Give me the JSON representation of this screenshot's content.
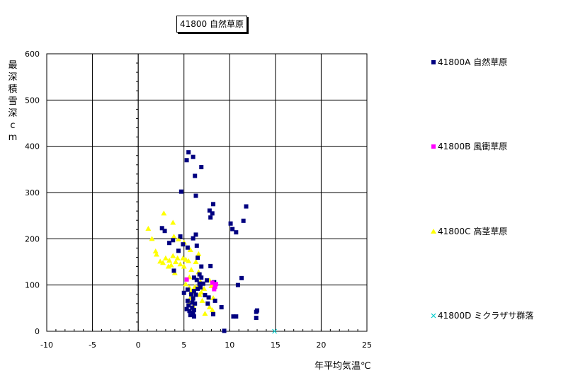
{
  "chart_data": {
    "type": "scatter",
    "title": "41800 自然草原",
    "xlabel": "年平均気温℃",
    "ylabel": "最深積雪深cm",
    "xlim": [
      -10,
      25
    ],
    "ylim": [
      0,
      600
    ],
    "x_ticks": [
      -10,
      -5,
      0,
      5,
      10,
      15,
      20,
      25
    ],
    "y_ticks": [
      0,
      100,
      200,
      300,
      400,
      500,
      600
    ],
    "grid": true,
    "legend_position": "right",
    "series": [
      {
        "name": "41800A 自然草原",
        "marker": "square",
        "color": "#000080",
        "points": [
          [
            5.5,
            387
          ],
          [
            6.0,
            377
          ],
          [
            5.3,
            370
          ],
          [
            6.9,
            355
          ],
          [
            6.2,
            336
          ],
          [
            4.7,
            302
          ],
          [
            6.3,
            293
          ],
          [
            8.2,
            275
          ],
          [
            11.8,
            270
          ],
          [
            7.8,
            261
          ],
          [
            8.1,
            255
          ],
          [
            7.9,
            246
          ],
          [
            11.5,
            239
          ],
          [
            10.1,
            233
          ],
          [
            10.3,
            221
          ],
          [
            2.6,
            223
          ],
          [
            2.9,
            217
          ],
          [
            10.7,
            214
          ],
          [
            6.3,
            209
          ],
          [
            6.0,
            201
          ],
          [
            4.6,
            205
          ],
          [
            3.8,
            197
          ],
          [
            3.4,
            191
          ],
          [
            6.4,
            185
          ],
          [
            4.9,
            188
          ],
          [
            5.4,
            181
          ],
          [
            4.4,
            174
          ],
          [
            6.5,
            159
          ],
          [
            6.9,
            140
          ],
          [
            7.9,
            141
          ],
          [
            3.9,
            131
          ],
          [
            6.7,
            123
          ],
          [
            6.1,
            116
          ],
          [
            6.9,
            116
          ],
          [
            6.4,
            111
          ],
          [
            7.5,
            110
          ],
          [
            11.3,
            115
          ],
          [
            6.7,
            103
          ],
          [
            7.1,
            103
          ],
          [
            8.3,
            106
          ],
          [
            10.9,
            100
          ],
          [
            5.0,
            83
          ],
          [
            5.4,
            90
          ],
          [
            6.1,
            87
          ],
          [
            6.5,
            92
          ],
          [
            6.8,
            95
          ],
          [
            5.8,
            80
          ],
          [
            6.3,
            79
          ],
          [
            7.3,
            78
          ],
          [
            7.7,
            73
          ],
          [
            6.0,
            71
          ],
          [
            5.4,
            66
          ],
          [
            5.9,
            62
          ],
          [
            6.2,
            60
          ],
          [
            7.6,
            60
          ],
          [
            8.4,
            66
          ],
          [
            5.5,
            56
          ],
          [
            5.9,
            51
          ],
          [
            6.1,
            46
          ],
          [
            5.3,
            48
          ],
          [
            9.1,
            52
          ],
          [
            5.6,
            44
          ],
          [
            6.0,
            40
          ],
          [
            8.2,
            37
          ],
          [
            5.7,
            35
          ],
          [
            6.1,
            32
          ],
          [
            10.4,
            32
          ],
          [
            10.7,
            32
          ],
          [
            12.9,
            42
          ],
          [
            13.0,
            45
          ],
          [
            12.9,
            29
          ],
          [
            9.4,
            1
          ]
        ]
      },
      {
        "name": "41800B 風衝草原",
        "marker": "square",
        "color": "#ff00ff",
        "points": [
          [
            5.3,
            112
          ],
          [
            8.1,
            105
          ],
          [
            8.5,
            102
          ],
          [
            8.4,
            96
          ],
          [
            8.3,
            91
          ]
        ]
      },
      {
        "name": "41800C 高茎草原",
        "marker": "triangle",
        "color": "#ffff00",
        "points": [
          [
            2.8,
            255
          ],
          [
            1.1,
            222
          ],
          [
            3.8,
            235
          ],
          [
            1.5,
            200
          ],
          [
            3.9,
            205
          ],
          [
            4.4,
            199
          ],
          [
            5.0,
            192
          ],
          [
            1.9,
            173
          ],
          [
            2.0,
            166
          ],
          [
            5.7,
            176
          ],
          [
            2.4,
            151
          ],
          [
            2.7,
            148
          ],
          [
            3.0,
            158
          ],
          [
            3.4,
            153
          ],
          [
            3.6,
            143
          ],
          [
            3.8,
            163
          ],
          [
            4.1,
            150
          ],
          [
            4.3,
            158
          ],
          [
            4.6,
            145
          ],
          [
            5.0,
            140
          ],
          [
            3.3,
            140
          ],
          [
            4.9,
            158
          ],
          [
            5.2,
            155
          ],
          [
            5.5,
            152
          ],
          [
            6.3,
            150
          ],
          [
            6.6,
            167
          ],
          [
            4.0,
            126
          ],
          [
            5.8,
            133
          ],
          [
            6.6,
            128
          ],
          [
            5.6,
            117
          ],
          [
            6.8,
            107
          ],
          [
            5.2,
            102
          ],
          [
            5.6,
            94
          ],
          [
            5.8,
            86
          ],
          [
            6.2,
            96
          ],
          [
            6.6,
            98
          ],
          [
            7.2,
            92
          ],
          [
            7.8,
            110
          ],
          [
            8.0,
            98
          ],
          [
            8.3,
            102
          ],
          [
            6.9,
            84
          ],
          [
            6.7,
            79
          ],
          [
            5.7,
            72
          ],
          [
            8.2,
            72
          ],
          [
            7.0,
            66
          ],
          [
            5.6,
            62
          ],
          [
            6.0,
            54
          ],
          [
            7.8,
            52
          ],
          [
            8.1,
            46
          ],
          [
            7.3,
            38
          ]
        ]
      },
      {
        "name": "41800D ミクラザサ群落",
        "marker": "x",
        "color": "#00cccc",
        "points": [
          [
            14.9,
            0
          ]
        ]
      }
    ]
  }
}
